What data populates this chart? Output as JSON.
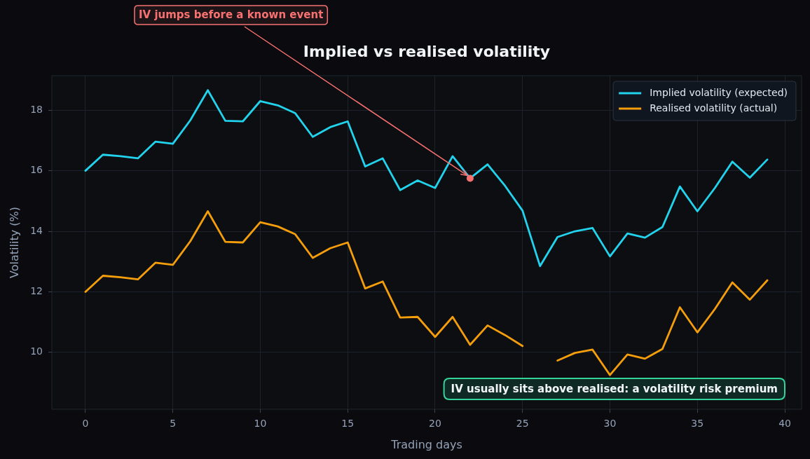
{
  "chart_data": {
    "type": "line",
    "title": "Implied vs realised volatility",
    "xlabel": "Trading days",
    "ylabel": "Volatility (%)",
    "x": [
      0,
      1,
      2,
      3,
      4,
      5,
      6,
      7,
      8,
      9,
      10,
      11,
      12,
      13,
      14,
      15,
      16,
      17,
      18,
      19,
      20,
      21,
      22,
      23,
      24,
      25,
      26,
      27,
      28,
      29,
      30,
      31,
      32,
      33,
      34,
      35,
      36,
      37,
      38,
      39
    ],
    "series": [
      {
        "name": "Implied volatility (expected)",
        "color": "#22d3ee",
        "values": [
          16.0,
          16.53,
          16.48,
          16.41,
          16.96,
          16.89,
          17.67,
          18.66,
          17.65,
          17.63,
          18.3,
          18.16,
          17.9,
          17.12,
          17.44,
          17.63,
          16.14,
          16.41,
          15.36,
          15.68,
          15.43,
          16.48,
          15.75,
          16.21,
          15.5,
          14.68,
          12.85,
          13.81,
          14.0,
          14.11,
          13.17,
          13.93,
          13.79,
          14.14,
          15.48,
          14.66,
          15.43,
          16.3,
          15.77,
          16.37
        ]
      },
      {
        "name": "Realised volatility (actual)",
        "color": "#f59e0b",
        "values": [
          12.0,
          12.53,
          12.48,
          12.41,
          12.96,
          12.89,
          13.67,
          14.66,
          13.65,
          13.63,
          14.3,
          14.16,
          13.9,
          13.12,
          13.44,
          13.63,
          12.11,
          12.34,
          11.15,
          11.17,
          10.51,
          11.17,
          10.25,
          10.89,
          10.57,
          10.21,
          null,
          9.73,
          9.98,
          10.09,
          9.25,
          9.93,
          9.79,
          10.11,
          11.49,
          10.66,
          11.43,
          12.31,
          11.74,
          12.38
        ]
      }
    ],
    "xlim": [
      -1.92,
      40.96
    ],
    "xticks": [
      0,
      5,
      10,
      15,
      20,
      25,
      30,
      35,
      40
    ],
    "ylim": [
      8.12,
      19.14
    ],
    "yticks": [
      10,
      12,
      14,
      16,
      18
    ],
    "grid": true,
    "legend": "top right",
    "marker": "none",
    "line_style": "solid",
    "annotations": [
      {
        "text": "IV jumps before a known event",
        "x": 22,
        "y": 15.75
      },
      "IV usually sits above realised: a volatility risk premium"
    ]
  }
}
